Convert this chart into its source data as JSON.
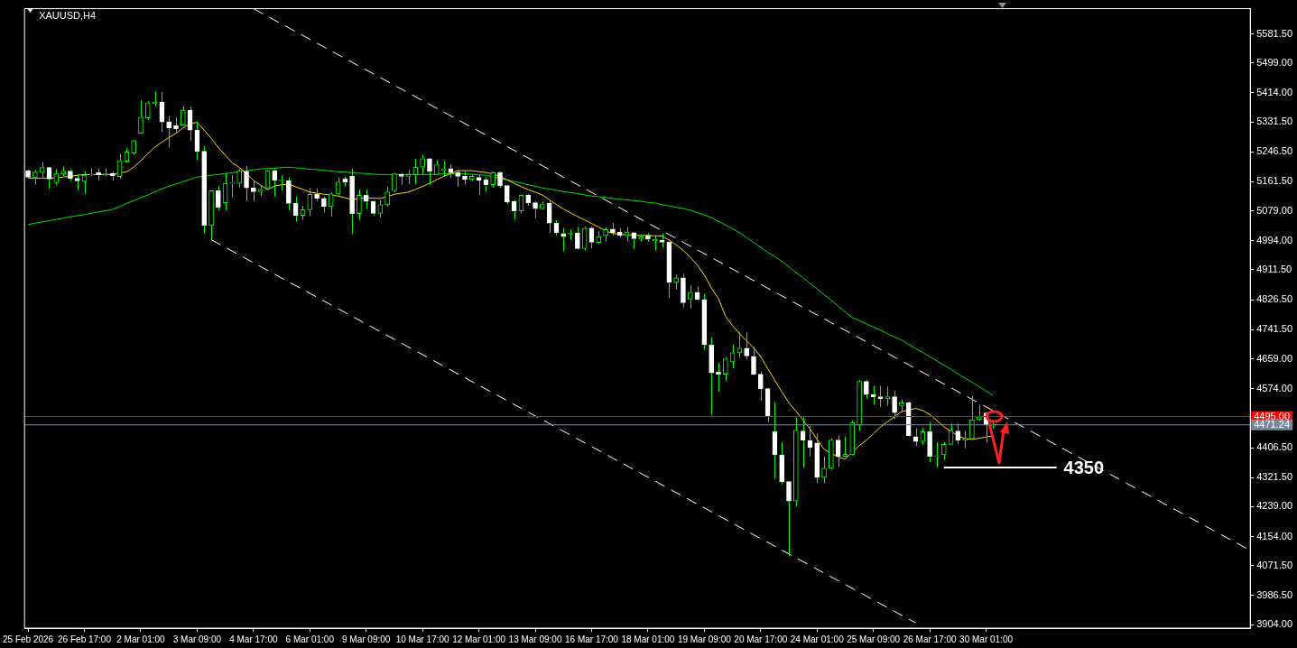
{
  "chart_data": {
    "type": "candlestick",
    "title": "XAUUSD,H4",
    "categories": [
      "25 Feb 2026",
      null,
      null,
      null,
      null,
      null,
      null,
      null,
      "26 Feb 17:00",
      null,
      null,
      null,
      null,
      null,
      null,
      null,
      "2 Mar 01:00",
      null,
      null,
      null,
      null,
      null,
      null,
      null,
      "3 Mar 09:00",
      null,
      null,
      null,
      null,
      null,
      null,
      null,
      "4 Mar 17:00",
      null,
      null,
      null,
      null,
      null,
      null,
      null,
      "6 Mar 01:00",
      null,
      null,
      null,
      null,
      null,
      null,
      null,
      "9 Mar 09:00",
      null,
      null,
      null,
      null,
      null,
      null,
      null,
      "10 Mar 17:00",
      null,
      null,
      null,
      null,
      null,
      null,
      null,
      "12 Mar 01:00",
      null,
      null,
      null,
      null,
      null,
      null,
      null,
      "13 Mar 09:00",
      null,
      null,
      null,
      null,
      null,
      null,
      null,
      "16 Mar 17:00",
      null,
      null,
      null,
      null,
      null,
      null,
      null,
      "18 Mar 01:00",
      null,
      null,
      null,
      null,
      null,
      null,
      null,
      "19 Mar 09:00",
      null,
      null,
      null,
      null,
      null,
      null,
      null,
      "20 Mar 17:00",
      null,
      null,
      null,
      null,
      null,
      null,
      null,
      "24 Mar 01:00",
      null,
      null,
      null,
      null,
      null,
      null,
      null,
      "25 Mar 09:00",
      null,
      null,
      null,
      null,
      null,
      null,
      null,
      "26 Mar 17:00",
      null,
      null,
      null,
      null,
      null,
      null,
      null,
      "30 Mar 01:00",
      null,
      null,
      null,
      null,
      null,
      null,
      null,
      null,
      null,
      null,
      null,
      null,
      null,
      null,
      null,
      null,
      null,
      null,
      null,
      null,
      null,
      null,
      null,
      null,
      null,
      null,
      null,
      null,
      null,
      null,
      null,
      null,
      null,
      null,
      null,
      null,
      null
    ],
    "series": [
      {
        "type": "candlestick",
        "color": "#00ff00",
        "colors": [
          "#ffffff",
          "#00ff00",
          "#00ff00",
          "#ffffff",
          "#00ff00",
          "#00ff00",
          "#ffffff",
          "#ffffff",
          "#00ff00",
          "#00ff00",
          "#ffffff",
          "#00ff00",
          "#ffffff",
          "#00ff00",
          "#00ff00",
          "#00ff00",
          "#00ff00",
          "#00ff00",
          "#00ff00",
          "#ffffff",
          "#ffffff",
          "#ffffff",
          "#00ff00",
          "#ffffff",
          "#ffffff",
          "#ffffff",
          "#00ff00",
          "#ffffff",
          "#00ff00",
          "#00ff00",
          "#00ff00",
          "#ffffff",
          "#ffffff",
          "#00ff00",
          "#00ff00",
          "#ffffff",
          "#00ff00",
          "#ffffff",
          "#ffffff",
          "#00ff00",
          "#00ff00",
          "#ffffff",
          "#ffffff",
          "#00ff00",
          "#00ff00",
          "#ffffff",
          "#ffffff",
          "#00ff00",
          "#ffffff",
          "#ffffff",
          "#00ff00",
          "#00ff00",
          "#00ff00",
          "#ffffff",
          "#00ff00",
          "#00ff00",
          "#00ff00",
          "#ffffff",
          "#00ff00",
          "#00ff00",
          "#ffffff",
          "#ffffff",
          "#ffffff",
          "#00ff00",
          "#ffffff",
          "#ffffff",
          "#00ff00",
          "#ffffff",
          "#ffffff",
          "#ffffff",
          "#00ff00",
          "#ffffff",
          "#ffffff",
          "#00ff00",
          "#ffffff",
          "#ffffff",
          "#ffffff",
          "#00ff00",
          "#ffffff",
          "#00ff00",
          "#ffffff",
          "#00ff00",
          "#00ff00",
          "#ffffff",
          "#ffffff",
          "#00ff00",
          "#ffffff",
          "#00ff00",
          "#ffffff",
          "#00ff00",
          "#ffffff",
          "#ffffff",
          "#00ff00",
          "#ffffff",
          "#00ff00",
          "#ffffff",
          "#ffffff",
          "#ffffff",
          "#ffffff",
          "#00ff00",
          "#00ff00",
          "#00ff00",
          "#ffffff",
          "#ffffff",
          "#ffffff",
          "#ffffff",
          "#ffffff",
          "#ffffff",
          "#ffffff",
          "#00ff00",
          "#ffffff",
          "#ffffff",
          "#ffffff",
          "#00ff00",
          "#00ff00",
          "#ffffff",
          "#00ff00",
          "#00ff00",
          "#00ff00",
          "#ffffff",
          "#ffffff",
          "#ffffff",
          "#00ff00",
          "#ffffff",
          "#00ff00",
          "#ffffff",
          "#ffffff",
          "#00ff00",
          "#ffffff",
          "#00ff00",
          "#00ff00",
          "#00ff00",
          "#ffffff",
          "#00ff00",
          "#00ff00",
          "#00ff00",
          "#ffffff",
          "#00ff00",
          null,
          null,
          null,
          null,
          null,
          null,
          null,
          null,
          null,
          null,
          null,
          null,
          null,
          null,
          null,
          null,
          null,
          null,
          null,
          null,
          null,
          null,
          null,
          null,
          null,
          null,
          null,
          null,
          null,
          null,
          null,
          null,
          null,
          null,
          null,
          null
        ],
        "ohlc": [
          [
            5193,
            5197,
            5170,
            5174
          ],
          [
            5174,
            5195,
            5153,
            5189
          ],
          [
            5188,
            5218,
            5174,
            5202
          ],
          [
            5202,
            5202,
            5142,
            5169
          ],
          [
            5159,
            5198,
            5153,
            5184
          ],
          [
            5183,
            5205,
            5178,
            5192
          ],
          [
            5192,
            5197,
            5163,
            5171
          ],
          [
            5171,
            5182,
            5138,
            5164
          ],
          [
            5163,
            5191,
            5127,
            5180
          ],
          [
            5181,
            5199,
            5178,
            5183
          ],
          [
            5187,
            5199,
            5165,
            5181
          ],
          [
            5182,
            5199,
            5178,
            5184
          ],
          [
            5185,
            5190,
            5165,
            5178
          ],
          [
            5176,
            5240,
            5170,
            5222
          ],
          [
            5220,
            5257,
            5215,
            5246
          ],
          [
            5243,
            5280,
            5239,
            5278
          ],
          [
            5299,
            5393,
            5297,
            5345
          ],
          [
            5343,
            5390,
            5337,
            5386
          ],
          [
            5384,
            5418,
            5376,
            5387
          ],
          [
            5388,
            5416,
            5303,
            5331
          ],
          [
            5332,
            5348,
            5259,
            5314
          ],
          [
            5321,
            5345,
            5302,
            5312
          ],
          [
            5322,
            5377,
            5322,
            5365
          ],
          [
            5365,
            5375,
            5277,
            5308
          ],
          [
            5308,
            5333,
            5223,
            5248
          ],
          [
            5248,
            5263,
            5015,
            5037
          ],
          [
            5037,
            5136,
            4996,
            5136
          ],
          [
            5136,
            5149,
            5081,
            5089
          ],
          [
            5102,
            5187,
            5081,
            5157
          ],
          [
            5157,
            5182,
            5116,
            5160
          ],
          [
            5157,
            5199,
            5144,
            5193
          ],
          [
            5191,
            5206,
            5106,
            5144
          ],
          [
            5144,
            5165,
            5106,
            5133
          ],
          [
            5133,
            5149,
            5121,
            5140
          ],
          [
            5144,
            5195,
            5140,
            5193
          ],
          [
            5193,
            5197,
            5119,
            5165
          ],
          [
            5164,
            5180,
            5137,
            5167
          ],
          [
            5164,
            5174,
            5081,
            5100
          ],
          [
            5100,
            5119,
            5048,
            5066
          ],
          [
            5066,
            5093,
            5053,
            5082
          ],
          [
            5082,
            5144,
            5064,
            5126
          ],
          [
            5126,
            5142,
            5106,
            5114
          ],
          [
            5114,
            5119,
            5074,
            5091
          ],
          [
            5091,
            5132,
            5063,
            5127
          ],
          [
            5127,
            5174,
            5123,
            5161
          ],
          [
            5170,
            5176,
            5149,
            5161
          ],
          [
            5177,
            5198,
            5013,
            5071
          ],
          [
            5071,
            5140,
            5054,
            5123
          ],
          [
            5123,
            5139,
            5085,
            5106
          ],
          [
            5106,
            5108,
            5066,
            5072
          ],
          [
            5072,
            5110,
            5060,
            5096
          ],
          [
            5096,
            5147,
            5091,
            5133
          ],
          [
            5136,
            5187,
            5132,
            5184
          ],
          [
            5182,
            5187,
            5153,
            5177
          ],
          [
            5177,
            5195,
            5155,
            5182
          ],
          [
            5182,
            5227,
            5155,
            5203
          ],
          [
            5203,
            5238,
            5182,
            5227
          ],
          [
            5227,
            5229,
            5153,
            5191
          ],
          [
            5182,
            5223,
            5181,
            5210
          ],
          [
            5193,
            5221,
            5176,
            5199
          ],
          [
            5199,
            5210,
            5172,
            5187
          ],
          [
            5187,
            5195,
            5147,
            5177
          ],
          [
            5177,
            5191,
            5153,
            5168
          ],
          [
            5168,
            5182,
            5163,
            5177
          ],
          [
            5174,
            5182,
            5123,
            5165
          ],
          [
            5167,
            5174,
            5133,
            5153
          ],
          [
            5153,
            5189,
            5144,
            5187
          ],
          [
            5187,
            5191,
            5144,
            5150
          ],
          [
            5151,
            5153,
            5098,
            5104
          ],
          [
            5106,
            5110,
            5054,
            5079
          ],
          [
            5079,
            5125,
            5071,
            5123
          ],
          [
            5123,
            5127,
            5093,
            5102
          ],
          [
            5102,
            5106,
            5058,
            5085
          ],
          [
            5085,
            5106,
            5081,
            5099
          ],
          [
            5100,
            5106,
            5017,
            5044
          ],
          [
            5044,
            5053,
            5009,
            5017
          ],
          [
            5014,
            5030,
            4964,
            5006
          ],
          [
            5013,
            5026,
            4996,
            5016
          ],
          [
            5016,
            5033,
            4969,
            4972
          ],
          [
            4972,
            5034,
            4966,
            5030
          ],
          [
            5030,
            5034,
            4972,
            4990
          ],
          [
            4989,
            5021,
            4986,
            5006
          ],
          [
            5009,
            5032,
            4992,
            5026
          ],
          [
            5027,
            5045,
            5009,
            5017
          ],
          [
            5019,
            5030,
            5003,
            5009
          ],
          [
            5009,
            5033,
            4992,
            5019
          ],
          [
            5017,
            5019,
            4972,
            5000
          ],
          [
            5000,
            5011,
            4992,
            5006
          ],
          [
            5009,
            5015,
            4992,
            4999
          ],
          [
            4994,
            5009,
            4967,
            4998
          ],
          [
            4996,
            5015,
            4975,
            4990
          ],
          [
            4990,
            4992,
            4833,
            4876
          ],
          [
            4876,
            4898,
            4856,
            4889
          ],
          [
            4889,
            4900,
            4805,
            4818
          ],
          [
            4828,
            4867,
            4803,
            4848
          ],
          [
            4848,
            4864,
            4826,
            4827
          ],
          [
            4827,
            4842,
            4684,
            4698
          ],
          [
            4698,
            4719,
            4500,
            4619
          ],
          [
            4621,
            4648,
            4565,
            4615
          ],
          [
            4615,
            4664,
            4596,
            4659
          ],
          [
            4650,
            4699,
            4632,
            4676
          ],
          [
            4676,
            4735,
            4661,
            4689
          ],
          [
            4689,
            4735,
            4657,
            4667
          ],
          [
            4666,
            4693,
            4612,
            4615
          ],
          [
            4615,
            4623,
            4540,
            4574
          ],
          [
            4574,
            4576,
            4479,
            4496
          ],
          [
            4452,
            4537,
            4318,
            4386
          ],
          [
            4386,
            4422,
            4302,
            4310
          ],
          [
            4310,
            4312,
            4098,
            4255
          ],
          [
            4255,
            4492,
            4240,
            4456
          ],
          [
            4454,
            4492,
            4350,
            4428
          ],
          [
            4427,
            4469,
            4382,
            4407
          ],
          [
            4420,
            4447,
            4305,
            4322
          ],
          [
            4322,
            4382,
            4305,
            4348
          ],
          [
            4348,
            4433,
            4343,
            4428
          ],
          [
            4428,
            4441,
            4352,
            4382
          ],
          [
            4382,
            4438,
            4380,
            4388
          ],
          [
            4386,
            4483,
            4384,
            4478
          ],
          [
            4470,
            4599,
            4455,
            4595
          ],
          [
            4595,
            4599,
            4545,
            4557
          ],
          [
            4557,
            4582,
            4528,
            4551
          ],
          [
            4551,
            4582,
            4522,
            4545
          ],
          [
            4545,
            4580,
            4525,
            4551
          ],
          [
            4551,
            4568,
            4488,
            4506
          ],
          [
            4526,
            4543,
            4506,
            4534
          ],
          [
            4534,
            4538,
            4438,
            4441
          ],
          [
            4438,
            4462,
            4411,
            4424
          ],
          [
            4424,
            4462,
            4415,
            4452
          ],
          [
            4452,
            4479,
            4365,
            4382
          ],
          [
            4381,
            4422,
            4350,
            4384
          ],
          [
            4386,
            4422,
            4373,
            4416
          ],
          [
            4416,
            4475,
            4416,
            4455
          ],
          [
            4454,
            4475,
            4416,
            4428
          ],
          [
            4428,
            4455,
            4405,
            4432
          ],
          [
            4432,
            4554,
            4428,
            4486
          ],
          [
            4486,
            4528,
            4483,
            4494
          ],
          [
            4505,
            4505,
            4420,
            4471
          ],
          [
            4468,
            4478,
            4460,
            4471.24
          ],
          null,
          null,
          null,
          null,
          null,
          null,
          null,
          null,
          null,
          null,
          null,
          null,
          null,
          null,
          null,
          null,
          null,
          null,
          null,
          null,
          null,
          null,
          null,
          null,
          null,
          null,
          null,
          null,
          null,
          null,
          null,
          null,
          null,
          null,
          null,
          null
        ]
      },
      {
        "type": "line",
        "color": "#ffd700",
        "values": [
          5172,
          5172,
          5172,
          5172,
          5172,
          5175,
          5177,
          5180,
          5182,
          5182,
          5182,
          5182,
          5182,
          5186,
          5190,
          5203,
          5221,
          5241,
          5260,
          5274,
          5287,
          5299,
          5314,
          5327,
          5330,
          5308,
          5285,
          5259,
          5237,
          5215,
          5202,
          5185,
          5165,
          5152,
          5139,
          5150,
          5153,
          5155,
          5147,
          5140,
          5132,
          5129,
          5126,
          5124,
          5121,
          5116,
          5111,
          5114,
          5116,
          5115,
          5114,
          5120,
          5126,
          5129,
          5132,
          5140,
          5148,
          5157,
          5167,
          5177,
          5185,
          5193,
          5193,
          5193,
          5190,
          5188,
          5183,
          5177,
          5167,
          5157,
          5148,
          5139,
          5132,
          5124,
          5110,
          5097,
          5084,
          5073,
          5063,
          5053,
          5043,
          5033,
          5022,
          5015,
          5012,
          5011,
          5010,
          5009,
          5009,
          5008,
          5007,
          4996,
          4982,
          4967,
          4947,
          4925,
          4897,
          4860,
          4830,
          4780,
          4753,
          4730,
          4710,
          4690,
          4665,
          4631,
          4598,
          4565,
          4534,
          4510,
          4485,
          4460,
          4430,
          4402,
          4390,
          4380,
          4374,
          4394,
          4412,
          4428,
          4446,
          4465,
          4480,
          4494,
          4509,
          4513,
          4518,
          4512,
          4501,
          4484,
          4466,
          4453,
          4440,
          4432,
          4430,
          4433,
          4437,
          4440,
          null,
          null,
          null,
          null,
          null,
          null,
          null,
          null,
          null,
          null,
          null,
          null,
          null,
          null,
          null,
          null,
          null,
          null,
          null,
          null,
          null,
          null,
          null,
          null,
          null,
          null,
          null,
          null,
          null,
          null,
          null,
          null,
          null,
          null,
          null,
          null
        ]
      },
      {
        "type": "line",
        "color": "#00e000",
        "values": [
          5040,
          5044,
          5048,
          5051,
          5055,
          5058,
          5062,
          5065,
          5068,
          5072,
          5076,
          5079,
          5083,
          5091,
          5100,
          5108,
          5116,
          5124,
          5133,
          5141,
          5149,
          5155,
          5162,
          5168,
          5175,
          5177,
          5180,
          5182,
          5185,
          5187,
          5190,
          5193,
          5195,
          5198,
          5199,
          5200,
          5202,
          5203,
          5201,
          5199,
          5197,
          5196,
          5194,
          5192,
          5190,
          5189,
          5187,
          5186,
          5185,
          5183,
          5182,
          5182,
          5182,
          5182,
          5182,
          5182,
          5182,
          5182,
          5183,
          5184,
          5184,
          5185,
          5184,
          5183,
          5181,
          5180,
          5176,
          5171,
          5167,
          5162,
          5158,
          5153,
          5149,
          5144,
          5141,
          5137,
          5134,
          5131,
          5128,
          5124,
          5121,
          5119,
          5117,
          5114,
          5112,
          5110,
          5108,
          5106,
          5103,
          5101,
          5097,
          5093,
          5089,
          5085,
          5081,
          5074,
          5067,
          5060,
          5049,
          5039,
          5028,
          5017,
          5003,
          4989,
          4975,
          4961,
          4949,
          4936,
          4920,
          4904,
          4889,
          4873,
          4857,
          4841,
          4825,
          4808,
          4792,
          4776,
          4767,
          4758,
          4749,
          4740,
          4730,
          4721,
          4712,
          4700,
          4688,
          4677,
          4665,
          4653,
          4641,
          4629,
          4616,
          4604,
          4592,
          4580,
          4567,
          4555,
          null,
          null,
          null,
          null,
          null,
          null,
          null,
          null,
          null,
          null,
          null,
          null,
          null,
          null,
          null,
          null,
          null,
          null,
          null,
          null,
          null,
          null,
          null,
          null,
          null,
          null,
          null,
          null,
          null,
          null,
          null,
          null,
          null,
          null,
          null,
          null
        ]
      },
      {
        "type": "line",
        "name": "4350",
        "color": "#ffffff",
        "values": [
          null,
          null,
          null,
          null,
          null,
          null,
          null,
          null,
          null,
          null,
          null,
          null,
          null,
          null,
          null,
          null,
          null,
          null,
          null,
          null,
          null,
          null,
          null,
          null,
          null,
          null,
          null,
          null,
          null,
          null,
          null,
          null,
          null,
          null,
          null,
          null,
          null,
          null,
          null,
          null,
          null,
          null,
          null,
          null,
          null,
          null,
          null,
          null,
          null,
          null,
          null,
          null,
          null,
          null,
          null,
          null,
          null,
          null,
          null,
          null,
          null,
          null,
          null,
          null,
          null,
          null,
          null,
          null,
          null,
          null,
          null,
          null,
          null,
          null,
          null,
          null,
          null,
          null,
          null,
          null,
          null,
          null,
          null,
          null,
          null,
          null,
          null,
          null,
          null,
          null,
          null,
          null,
          null,
          null,
          null,
          null,
          null,
          null,
          null,
          null,
          null,
          null,
          null,
          null,
          null,
          null,
          null,
          null,
          null,
          null,
          null,
          null,
          null,
          null,
          null,
          null,
          null,
          null,
          null,
          null,
          null,
          null,
          null,
          null,
          null,
          null,
          null,
          null,
          null,
          null,
          4350,
          4350,
          4350,
          4350,
          4350,
          4350,
          4350,
          4350,
          4350,
          4350,
          4350,
          4350,
          4350,
          4350,
          4350,
          4350,
          4350,
          null,
          null,
          null,
          null,
          null,
          null,
          null,
          null,
          null,
          null,
          null,
          null,
          null,
          null,
          null,
          null,
          null,
          null,
          null,
          null,
          null,
          null,
          null,
          null,
          null,
          null,
          null
        ]
      },
      {
        "type": "line",
        "color": "#ffffff",
        "line_style": "dashed",
        "values": [
          null,
          null,
          null,
          null,
          null,
          null,
          null,
          null,
          null,
          null,
          null,
          null,
          null,
          null,
          null,
          null,
          null,
          null,
          null,
          null,
          null,
          null,
          null,
          null,
          null,
          null,
          null,
          null,
          null,
          null,
          null,
          null,
          5653,
          null,
          null,
          null,
          null,
          null,
          null,
          null,
          null,
          null,
          null,
          null,
          null,
          null,
          null,
          null,
          null,
          null,
          null,
          null,
          null,
          null,
          null,
          null,
          null,
          null,
          null,
          null,
          null,
          null,
          null,
          null,
          null,
          null,
          null,
          null,
          null,
          null,
          null,
          null,
          null,
          null,
          null,
          null,
          null,
          null,
          null,
          null,
          null,
          null,
          null,
          null,
          null,
          null,
          null,
          null,
          null,
          null,
          null,
          null,
          null,
          null,
          null,
          null,
          null,
          null,
          null,
          null,
          null,
          null,
          null,
          null,
          null,
          null,
          null,
          null,
          null,
          null,
          null,
          null,
          null,
          null,
          null,
          null,
          null,
          null,
          null,
          null,
          null,
          null,
          null,
          null,
          null,
          null,
          null,
          null,
          null,
          null,
          null,
          null,
          null,
          null,
          null,
          null,
          null,
          null,
          null,
          null,
          null,
          null,
          null,
          null,
          null,
          null,
          null,
          null,
          null,
          null,
          null,
          null,
          null,
          null,
          null,
          null,
          null,
          null,
          null,
          null,
          null,
          null,
          null,
          null,
          null,
          null,
          null,
          null,
          null,
          null,
          null,
          null,
          null,
          4120
        ]
      },
      {
        "type": "line",
        "color": "#ffffff",
        "line_style": "dashed",
        "values": [
          null,
          null,
          null,
          null,
          null,
          null,
          null,
          null,
          null,
          null,
          null,
          null,
          null,
          null,
          null,
          null,
          null,
          null,
          null,
          null,
          null,
          null,
          null,
          null,
          null,
          null,
          4997,
          null,
          null,
          null,
          null,
          null,
          null,
          null,
          null,
          null,
          null,
          null,
          null,
          null,
          null,
          null,
          null,
          null,
          null,
          null,
          null,
          null,
          null,
          null,
          null,
          null,
          null,
          null,
          null,
          null,
          null,
          null,
          null,
          null,
          null,
          null,
          null,
          null,
          null,
          null,
          null,
          null,
          null,
          null,
          null,
          null,
          null,
          null,
          null,
          null,
          null,
          null,
          null,
          null,
          null,
          null,
          null,
          null,
          null,
          null,
          null,
          null,
          null,
          null,
          null,
          null,
          null,
          null,
          null,
          null,
          null,
          null,
          null,
          null,
          null,
          null,
          null,
          null,
          null,
          null,
          null,
          null,
          null,
          null,
          null,
          null,
          null,
          null,
          null,
          null,
          null,
          null,
          null,
          null,
          null,
          null,
          null,
          null,
          null,
          null,
          3909,
          null,
          null,
          null,
          null,
          null,
          null,
          null,
          null,
          null,
          null,
          null,
          null,
          null,
          null,
          null,
          null,
          null,
          null,
          null,
          null,
          null,
          null,
          null,
          null,
          null,
          null,
          null,
          null,
          null,
          null,
          null,
          null,
          null,
          null,
          null,
          null,
          null,
          null,
          null,
          null,
          null,
          null,
          null,
          null,
          null,
          null,
          null
        ]
      }
    ],
    "ylim": [
      3894,
      5653
    ],
    "yticks": [
      {
        "value": 3904,
        "label": "3904.00"
      },
      {
        "value": 3986.5,
        "label": "3986.50"
      },
      {
        "value": 4071.5,
        "label": "4071.50"
      },
      {
        "value": 4154,
        "label": "4154.00"
      },
      {
        "value": 4239,
        "label": "4239.00"
      },
      {
        "value": 4321.5,
        "label": "4321.50"
      },
      {
        "value": 4406.5,
        "label": "4406.50"
      },
      {
        "value": 4574,
        "label": "4574.00"
      },
      {
        "value": 4659,
        "label": "4659.00"
      },
      {
        "value": 4741.5,
        "label": "4741.50"
      },
      {
        "value": 4826.5,
        "label": "4826.50"
      },
      {
        "value": 4911.5,
        "label": "4911.50"
      },
      {
        "value": 4994,
        "label": "4994.00"
      },
      {
        "value": 5079,
        "label": "5079.00"
      },
      {
        "value": 5161.5,
        "label": "5161.50"
      },
      {
        "value": 5246.5,
        "label": "5246.50"
      },
      {
        "value": 5331.5,
        "label": "5331.50"
      },
      {
        "value": 5414,
        "label": "5414.00"
      },
      {
        "value": 5499,
        "label": "5499.00"
      },
      {
        "value": 5581.5,
        "label": "5581.50"
      }
    ],
    "ref_lines": [
      {
        "axis": "y",
        "value": 4495,
        "label": "4495.00",
        "color": "#ff0000"
      },
      {
        "axis": "y",
        "value": 4471.24,
        "label": "4471.24",
        "color": "#778899"
      }
    ],
    "grid": false,
    "legend": false,
    "marker": "none"
  }
}
